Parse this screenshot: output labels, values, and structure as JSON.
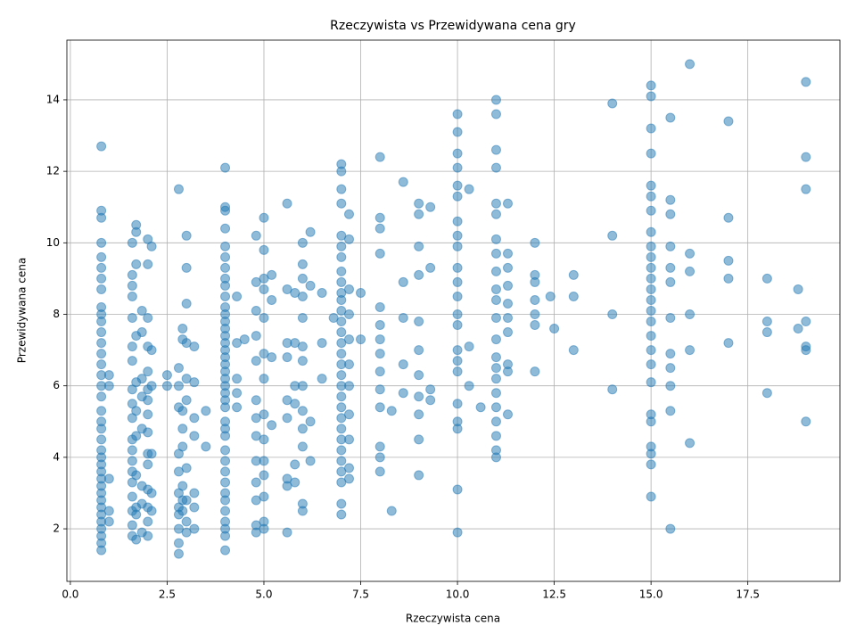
{
  "chart_data": {
    "type": "scatter",
    "title": "Rzeczywista vs Przewidywana cena gry",
    "x_label": "Rzeczywista cena",
    "y_label": "Przewidywana cena",
    "color": "#1f77b4",
    "grid": true,
    "xlim": [
      -0.09,
      19.88
    ],
    "ylim": [
      0.53,
      15.67
    ],
    "xticks": [
      {
        "value": 0,
        "label": "0.0"
      },
      2.5,
      {
        "value": 5,
        "label": "5.0"
      },
      7.5,
      {
        "value": 10,
        "label": "10.0"
      },
      12.5,
      {
        "value": 15,
        "label": "15.0"
      },
      17.5
    ],
    "yticks": [
      2,
      4,
      6,
      8,
      10,
      12,
      14
    ],
    "x": [
      0.8,
      0.8,
      0.8,
      0.8,
      0.8,
      0.8,
      0.8,
      0.8,
      0.8,
      0.8,
      0.8,
      0.8,
      0.8,
      0.8,
      0.8,
      0.8,
      0.8,
      0.8,
      0.8,
      0.8,
      0.8,
      0.8,
      0.8,
      0.8,
      0.8,
      0.8,
      0.8,
      0.8,
      0.8,
      0.8,
      0.8,
      0.8,
      0.8,
      0.8,
      0.8,
      0.8,
      0.8,
      1.0,
      1.0,
      1.0,
      1.0,
      1.0,
      1.6,
      1.6,
      1.6,
      1.6,
      1.6,
      1.6,
      1.6,
      1.6,
      1.6,
      1.6,
      1.6,
      1.6,
      1.6,
      1.6,
      1.6,
      1.6,
      1.6,
      1.6,
      1.6,
      1.7,
      1.7,
      1.7,
      1.7,
      1.7,
      1.7,
      1.7,
      1.7,
      1.7,
      1.7,
      1.7,
      1.85,
      1.85,
      1.85,
      1.85,
      1.85,
      1.85,
      1.85,
      1.85,
      2.0,
      2.0,
      2.0,
      2.0,
      2.0,
      2.0,
      2.0,
      2.0,
      2.0,
      2.0,
      2.0,
      2.0,
      2.0,
      2.0,
      2.0,
      2.1,
      2.1,
      2.1,
      2.1,
      2.1,
      2.1,
      2.5,
      2.5,
      2.8,
      2.8,
      2.8,
      2.8,
      2.8,
      2.8,
      2.8,
      2.8,
      2.8,
      2.8,
      2.8,
      2.8,
      2.9,
      2.9,
      2.9,
      2.9,
      2.9,
      2.9,
      2.9,
      2.9,
      3.0,
      3.0,
      3.0,
      3.0,
      3.0,
      3.0,
      3.0,
      3.0,
      3.0,
      3.0,
      3.2,
      3.2,
      3.2,
      3.2,
      3.2,
      3.2,
      3.2,
      3.5,
      3.5,
      4.0,
      4.0,
      4.0,
      4.0,
      4.0,
      4.0,
      4.0,
      4.0,
      4.0,
      4.0,
      4.0,
      4.0,
      4.0,
      4.0,
      4.0,
      4.0,
      4.0,
      4.0,
      4.0,
      4.0,
      4.0,
      4.0,
      4.0,
      4.0,
      4.0,
      4.0,
      4.0,
      4.0,
      4.0,
      4.0,
      4.0,
      4.0,
      4.0,
      4.0,
      4.0,
      4.0,
      4.0,
      4.0,
      4.0,
      4.3,
      4.3,
      4.3,
      4.3,
      4.3,
      4.5,
      4.8,
      4.8,
      4.8,
      4.8,
      4.8,
      4.8,
      4.8,
      4.8,
      4.8,
      4.8,
      4.8,
      4.8,
      4.8,
      5.0,
      5.0,
      5.0,
      5.0,
      5.0,
      5.0,
      5.0,
      5.0,
      5.0,
      5.0,
      5.0,
      5.0,
      5.0,
      5.0,
      5.2,
      5.2,
      5.2,
      5.2,
      5.6,
      5.6,
      5.6,
      5.6,
      5.6,
      5.6,
      5.6,
      5.6,
      5.6,
      5.8,
      5.8,
      5.8,
      5.8,
      5.8,
      5.8,
      6.0,
      6.0,
      6.0,
      6.0,
      6.0,
      6.0,
      6.0,
      6.0,
      6.0,
      6.0,
      6.0,
      6.0,
      6.0,
      6.2,
      6.2,
      6.2,
      6.2,
      6.5,
      6.5,
      6.5,
      6.8,
      7.0,
      7.0,
      7.0,
      7.0,
      7.0,
      7.0,
      7.0,
      7.0,
      7.0,
      7.0,
      7.0,
      7.0,
      7.0,
      7.0,
      7.0,
      7.0,
      7.0,
      7.0,
      7.0,
      7.0,
      7.0,
      7.0,
      7.0,
      7.0,
      7.0,
      7.0,
      7.0,
      7.0,
      7.0,
      7.0,
      7.2,
      7.2,
      7.2,
      7.2,
      7.2,
      7.2,
      7.2,
      7.2,
      7.2,
      7.2,
      7.2,
      7.5,
      7.5,
      8.0,
      8.0,
      8.0,
      8.0,
      8.0,
      8.0,
      8.0,
      8.0,
      8.0,
      8.0,
      8.0,
      8.0,
      8.0,
      8.0,
      8.3,
      8.3,
      8.6,
      8.6,
      8.6,
      8.6,
      8.6,
      9.0,
      9.0,
      9.0,
      9.0,
      9.0,
      9.0,
      9.0,
      9.0,
      9.0,
      9.0,
      9.0,
      9.3,
      9.3,
      9.3,
      9.3,
      10.0,
      10.0,
      10.0,
      10.0,
      10.0,
      10.0,
      10.0,
      10.0,
      10.0,
      10.0,
      10.0,
      10.0,
      10.0,
      10.0,
      10.0,
      10.0,
      10.0,
      10.0,
      10.0,
      10.0,
      10.0,
      10.0,
      10.3,
      10.3,
      10.3,
      10.6,
      11.0,
      11.0,
      11.0,
      11.0,
      11.0,
      11.0,
      11.0,
      11.0,
      11.0,
      11.0,
      11.0,
      11.0,
      11.0,
      11.0,
      11.0,
      11.0,
      11.0,
      11.0,
      11.0,
      11.0,
      11.0,
      11.0,
      11.3,
      11.3,
      11.3,
      11.3,
      11.3,
      11.3,
      11.3,
      11.3,
      11.3,
      11.3,
      12.0,
      12.0,
      12.0,
      12.0,
      12.0,
      12.0,
      12.0,
      12.4,
      12.5,
      13.0,
      13.0,
      13.0,
      14.0,
      14.0,
      14.0,
      14.0,
      15.0,
      15.0,
      15.0,
      15.0,
      15.0,
      15.0,
      15.0,
      15.0,
      15.0,
      15.0,
      15.0,
      15.0,
      15.0,
      15.0,
      15.0,
      15.0,
      15.0,
      15.0,
      15.0,
      15.0,
      15.0,
      15.0,
      15.0,
      15.0,
      15.0,
      15.0,
      15.5,
      15.5,
      15.5,
      15.5,
      15.5,
      15.5,
      15.5,
      15.5,
      15.5,
      15.5,
      15.5,
      15.5,
      16.0,
      16.0,
      16.0,
      16.0,
      16.0,
      16.0,
      17.0,
      17.0,
      17.0,
      17.0,
      17.0,
      18.0,
      18.0,
      18.0,
      18.0,
      18.8,
      18.8,
      19.0,
      19.0,
      19.0,
      19.0,
      19.0,
      19.0,
      19.0
    ],
    "values": [
      12.7,
      10.9,
      10.7,
      10.0,
      9.6,
      9.3,
      9.0,
      8.7,
      8.2,
      8.0,
      7.8,
      7.5,
      7.2,
      6.9,
      6.6,
      6.3,
      6.0,
      5.7,
      5.3,
      5.0,
      4.8,
      4.5,
      4.2,
      4.0,
      3.8,
      3.6,
      3.4,
      3.2,
      3.0,
      2.8,
      2.6,
      2.4,
      2.2,
      2.0,
      1.8,
      1.6,
      1.4,
      6.3,
      6.0,
      3.4,
      2.5,
      2.2,
      10.0,
      9.1,
      8.8,
      8.5,
      7.9,
      7.1,
      6.7,
      5.9,
      5.5,
      5.1,
      4.5,
      4.2,
      3.9,
      3.6,
      3.3,
      2.9,
      2.5,
      2.1,
      1.8,
      10.5,
      10.3,
      9.4,
      7.4,
      6.1,
      5.3,
      4.6,
      3.5,
      2.6,
      2.4,
      1.7,
      8.1,
      7.5,
      6.2,
      5.7,
      4.8,
      3.2,
      2.7,
      1.9,
      10.1,
      9.4,
      7.9,
      7.1,
      6.4,
      5.9,
      5.6,
      5.2,
      4.7,
      4.1,
      3.8,
      3.1,
      2.6,
      2.2,
      1.8,
      9.9,
      7.0,
      6.0,
      4.1,
      3.0,
      2.5,
      6.3,
      6.0,
      11.5,
      6.5,
      6.0,
      5.4,
      4.1,
      3.6,
      3.0,
      2.6,
      2.4,
      2.0,
      1.6,
      1.3,
      7.6,
      7.3,
      5.3,
      4.8,
      4.3,
      3.2,
      2.8,
      2.5,
      10.2,
      9.3,
      8.3,
      7.2,
      6.2,
      5.6,
      3.7,
      2.8,
      2.2,
      1.9,
      7.1,
      6.1,
      5.1,
      4.6,
      3.0,
      2.6,
      2.0,
      5.3,
      4.3,
      12.1,
      11.0,
      10.9,
      10.4,
      9.9,
      9.6,
      9.3,
      9.0,
      8.8,
      8.5,
      8.2,
      8.0,
      7.8,
      7.6,
      7.4,
      7.2,
      7.0,
      6.8,
      6.6,
      6.4,
      6.2,
      6.0,
      5.8,
      5.6,
      5.4,
      5.0,
      4.8,
      4.6,
      4.2,
      3.9,
      3.6,
      3.3,
      3.0,
      2.8,
      2.5,
      2.2,
      2.0,
      1.8,
      1.4,
      8.5,
      7.2,
      6.2,
      5.8,
      5.4,
      7.3,
      10.2,
      8.9,
      8.1,
      7.4,
      6.7,
      5.6,
      5.1,
      4.6,
      3.9,
      3.3,
      2.8,
      2.1,
      1.9,
      10.7,
      9.8,
      9.0,
      8.7,
      7.9,
      6.9,
      6.2,
      5.2,
      4.5,
      3.9,
      3.5,
      2.9,
      2.2,
      2.0,
      9.1,
      8.4,
      6.8,
      4.9,
      11.1,
      8.7,
      7.2,
      6.8,
      5.6,
      5.1,
      3.4,
      3.2,
      1.9,
      8.6,
      7.2,
      6.0,
      5.5,
      3.8,
      3.3,
      10.0,
      9.4,
      9.0,
      8.5,
      7.9,
      7.1,
      6.7,
      6.0,
      5.3,
      4.8,
      4.3,
      2.7,
      2.5,
      10.3,
      8.8,
      5.0,
      3.9,
      8.6,
      7.2,
      6.2,
      7.9,
      12.2,
      12.0,
      11.5,
      11.1,
      10.2,
      9.9,
      9.6,
      9.2,
      8.9,
      8.6,
      8.4,
      8.1,
      7.8,
      7.5,
      7.2,
      6.9,
      6.6,
      6.3,
      6.0,
      5.7,
      5.4,
      5.1,
      4.8,
      4.5,
      4.2,
      3.9,
      3.6,
      3.3,
      2.7,
      2.4,
      10.8,
      10.1,
      8.7,
      8.0,
      7.3,
      6.6,
      6.0,
      5.2,
      4.5,
      3.7,
      3.4,
      8.6,
      7.3,
      12.4,
      10.7,
      10.4,
      9.7,
      8.2,
      7.7,
      7.3,
      6.9,
      6.4,
      5.9,
      5.4,
      4.3,
      4.0,
      3.6,
      5.3,
      2.5,
      11.7,
      8.9,
      7.9,
      6.6,
      5.8,
      11.1,
      10.8,
      9.9,
      9.1,
      7.8,
      7.0,
      6.3,
      5.7,
      5.2,
      4.5,
      3.5,
      11.0,
      9.3,
      5.9,
      5.6,
      13.6,
      13.1,
      12.5,
      12.1,
      11.6,
      11.3,
      10.6,
      10.2,
      9.9,
      9.3,
      8.9,
      8.5,
      8.0,
      7.7,
      7.0,
      6.7,
      6.4,
      5.5,
      5.0,
      4.8,
      3.1,
      1.9,
      11.5,
      7.1,
      6.0,
      5.4,
      14.0,
      13.6,
      12.6,
      12.1,
      11.1,
      10.8,
      10.1,
      9.7,
      9.2,
      8.7,
      8.4,
      7.9,
      7.3,
      6.8,
      6.5,
      6.2,
      5.8,
      5.4,
      5.0,
      4.6,
      4.2,
      4.0,
      11.1,
      9.7,
      9.3,
      8.8,
      8.3,
      7.9,
      7.5,
      6.6,
      6.4,
      5.2,
      10.0,
      9.1,
      8.9,
      8.4,
      8.0,
      7.7,
      6.4,
      8.5,
      7.6,
      9.1,
      8.5,
      7.0,
      13.9,
      10.2,
      8.0,
      5.9,
      14.4,
      14.1,
      13.2,
      12.5,
      11.6,
      11.3,
      10.9,
      10.3,
      9.9,
      9.6,
      9.3,
      9.0,
      8.7,
      8.4,
      8.1,
      7.8,
      7.4,
      7.0,
      6.6,
      6.1,
      5.2,
      5.0,
      4.3,
      4.1,
      3.8,
      2.9,
      13.5,
      11.2,
      10.8,
      9.9,
      9.3,
      8.9,
      7.9,
      6.9,
      6.5,
      6.0,
      5.3,
      2.0,
      15.0,
      9.7,
      9.2,
      8.0,
      7.0,
      4.4,
      13.4,
      10.7,
      9.5,
      9.0,
      7.2,
      9.0,
      7.8,
      7.5,
      5.8,
      8.7,
      7.6,
      14.5,
      12.4,
      11.5,
      7.8,
      7.1,
      7.0,
      5.0
    ]
  }
}
